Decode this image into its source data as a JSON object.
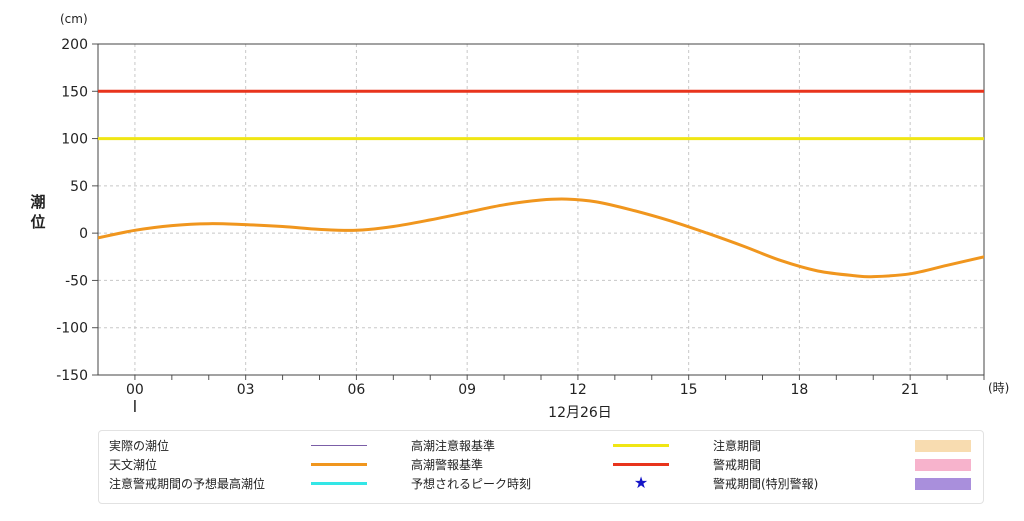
{
  "chart_data": {
    "type": "line",
    "y_axis_label": "潮位",
    "y_unit": "(cm)",
    "x_unit": "(時)",
    "date_label": "12月26日",
    "ylim": [
      -150,
      200
    ],
    "y_ticks": [
      "200",
      "150",
      "100",
      "50",
      "0",
      "-50",
      "-100",
      "-150"
    ],
    "x_tick_labels": [
      "00",
      "03",
      "06",
      "09",
      "12",
      "15",
      "18",
      "21"
    ],
    "grid": true,
    "lines": [
      {
        "name": "高潮警報基準",
        "value": 150,
        "color": "#e8341c"
      },
      {
        "name": "高潮注意報基準",
        "value": 100,
        "color": "#f0e614"
      }
    ],
    "series": [
      {
        "name": "天文潮位",
        "color": "#f0961e",
        "points": [
          [
            -1.0,
            -5
          ],
          [
            0.0,
            3
          ],
          [
            1.0,
            8
          ],
          [
            2.0,
            10
          ],
          [
            3.0,
            9
          ],
          [
            4.0,
            7
          ],
          [
            5.0,
            4
          ],
          [
            6.0,
            3
          ],
          [
            7.0,
            7
          ],
          [
            8.0,
            14
          ],
          [
            9.0,
            22
          ],
          [
            10.0,
            30
          ],
          [
            11.0,
            35
          ],
          [
            11.7,
            36
          ],
          [
            12.5,
            33
          ],
          [
            13.5,
            24
          ],
          [
            14.5,
            13
          ],
          [
            15.5,
            0
          ],
          [
            16.5,
            -14
          ],
          [
            17.5,
            -29
          ],
          [
            18.5,
            -40
          ],
          [
            19.5,
            -45
          ],
          [
            20.0,
            -46
          ],
          [
            21.0,
            -43
          ],
          [
            22.0,
            -34
          ],
          [
            23.0,
            -25
          ],
          [
            24.0,
            -16
          ]
        ]
      }
    ]
  },
  "legend": {
    "items": [
      {
        "label": "実際の潮位",
        "kind": "thin-line",
        "color": "#7b5ea7"
      },
      {
        "label": "天文潮位",
        "kind": "thick-line",
        "color": "#f0961e"
      },
      {
        "label": "注意警戒期間の予想最高潮位",
        "kind": "thick-line",
        "color": "#33e6e6"
      },
      {
        "label": "高潮注意報基準",
        "kind": "thick-line",
        "color": "#f0e614"
      },
      {
        "label": "高潮警報基準",
        "kind": "thick-line",
        "color": "#e8341c"
      },
      {
        "label": "予想されるピーク時刻",
        "kind": "star",
        "symbol": "★",
        "color": "#1515c8"
      },
      {
        "label": "注意期間",
        "kind": "rect",
        "color": "#f8dcb0"
      },
      {
        "label": "警戒期間",
        "kind": "rect",
        "color": "#f7b3cc"
      },
      {
        "label": "警戒期間(特別警報)",
        "kind": "rect",
        "color": "#a98fdc"
      }
    ]
  }
}
